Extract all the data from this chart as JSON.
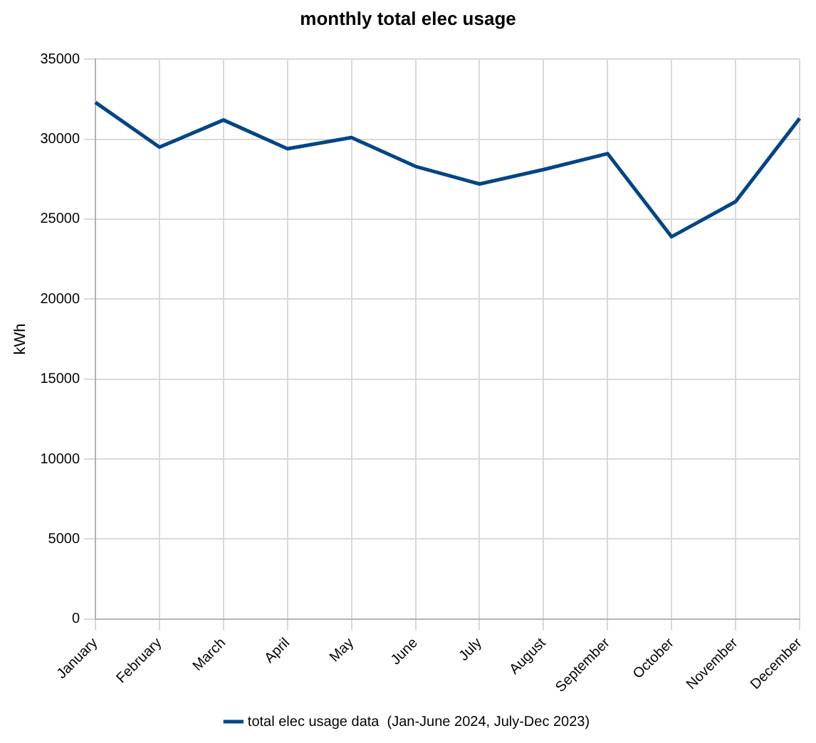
{
  "chart_data": {
    "type": "line",
    "title": "monthly total elec usage",
    "ylabel": "kWh",
    "categories": [
      "January",
      "February",
      "March",
      "April",
      "May",
      "June",
      "July",
      "August",
      "September",
      "October",
      "November",
      "December"
    ],
    "series": [
      {
        "name": "total elec usage data  (Jan-June 2024, July-Dec 2023)",
        "color": "#004586",
        "values": [
          32300,
          29500,
          31200,
          29400,
          30100,
          28300,
          27200,
          28100,
          29100,
          23900,
          26100,
          31300
        ]
      }
    ],
    "ylim": [
      0,
      35000
    ],
    "yticks": [
      0,
      5000,
      10000,
      15000,
      20000,
      25000,
      30000,
      35000
    ],
    "grid": true,
    "legend": "bottom",
    "marker": "none",
    "line_style": "solid"
  }
}
